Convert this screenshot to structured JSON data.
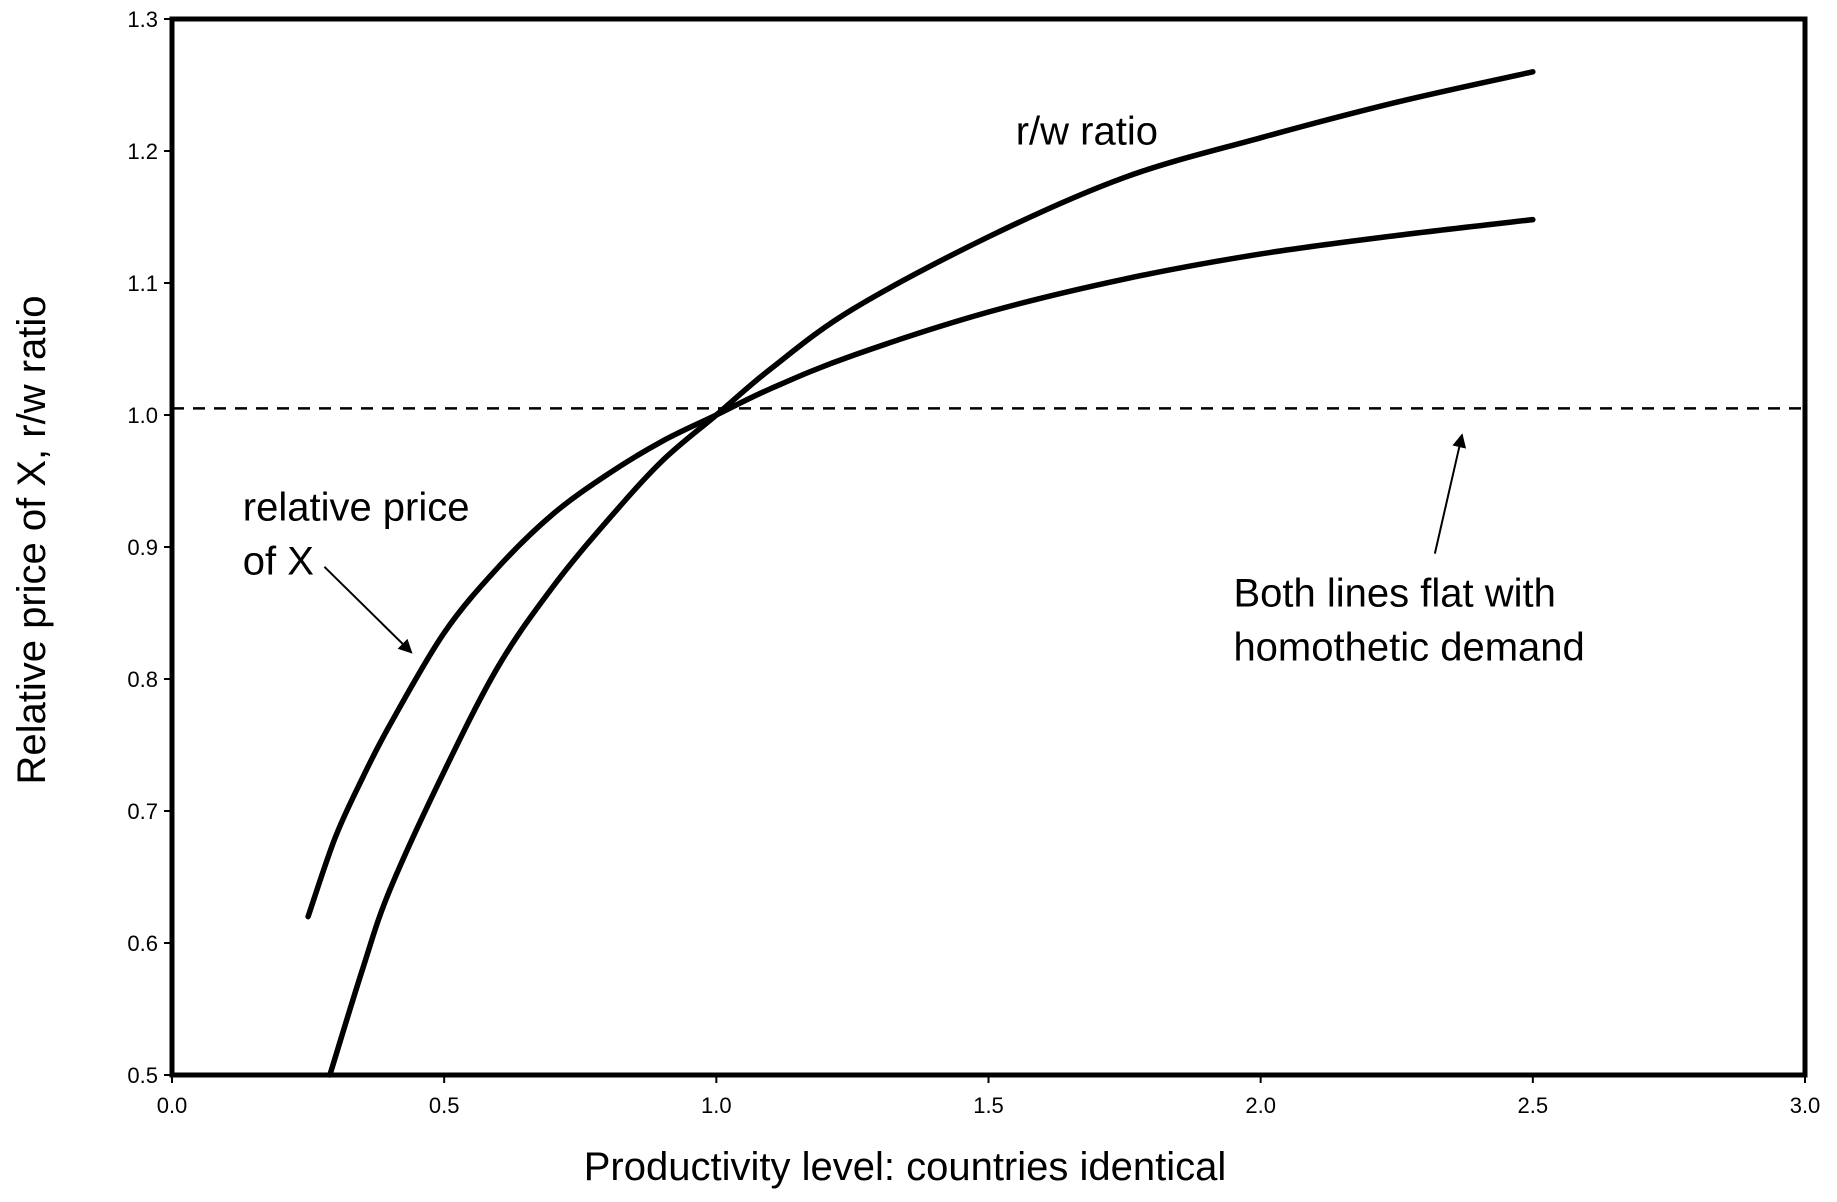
{
  "chart_data": {
    "type": "line",
    "title": "",
    "xlabel": "Productivity level:  countries identical",
    "ylabel": "Relative price of X,  r/w ratio",
    "xlim": [
      0.0,
      3.0
    ],
    "ylim": [
      0.5,
      1.3
    ],
    "grid": false,
    "x_ticks": [
      "0.0",
      "0.5",
      "1.0",
      "1.5",
      "2.0",
      "2.5",
      "3.0"
    ],
    "y_ticks": [
      "0.5",
      "0.6",
      "0.7",
      "0.8",
      "0.9",
      "1.0",
      "1.1",
      "1.2",
      "1.3"
    ],
    "series": [
      {
        "name": "r/w ratio",
        "style": "solid",
        "color": "#000000",
        "x": [
          0.29,
          0.35,
          0.4,
          0.5,
          0.6,
          0.7,
          0.8,
          0.9,
          1.0,
          1.1,
          1.25,
          1.5,
          1.75,
          2.0,
          2.25,
          2.5
        ],
        "y": [
          0.5,
          0.58,
          0.64,
          0.73,
          0.81,
          0.87,
          0.92,
          0.965,
          1.0,
          1.035,
          1.08,
          1.135,
          1.18,
          1.21,
          1.237,
          1.26
        ]
      },
      {
        "name": "relative price of X",
        "style": "solid",
        "color": "#000000",
        "x": [
          0.25,
          0.3,
          0.35,
          0.4,
          0.5,
          0.6,
          0.7,
          0.8,
          0.9,
          1.0,
          1.1,
          1.25,
          1.5,
          1.75,
          2.0,
          2.25,
          2.5
        ],
        "y": [
          0.62,
          0.68,
          0.725,
          0.765,
          0.835,
          0.885,
          0.925,
          0.955,
          0.98,
          1.0,
          1.02,
          1.045,
          1.078,
          1.103,
          1.122,
          1.136,
          1.148
        ]
      },
      {
        "name": "",
        "style": "dashed",
        "color": "#000000",
        "x": [
          0.0,
          3.0
        ],
        "y": [
          1.005,
          1.005
        ]
      }
    ],
    "annotations": [
      {
        "id": "rw",
        "lines": [
          "r/w ratio"
        ],
        "x": 1.55,
        "y": 1.205
      },
      {
        "id": "price",
        "lines": [
          "relative price",
          "of X"
        ],
        "x": 0.13,
        "y": 0.92
      },
      {
        "id": "flat",
        "lines": [
          "Both lines flat with",
          "homothetic demand"
        ],
        "x": 1.95,
        "y": 0.855
      }
    ],
    "arrows": [
      {
        "from": [
          0.28,
          0.885
        ],
        "to": [
          0.44,
          0.82
        ]
      },
      {
        "from": [
          2.32,
          0.895
        ],
        "to": [
          2.37,
          0.985
        ]
      }
    ]
  }
}
